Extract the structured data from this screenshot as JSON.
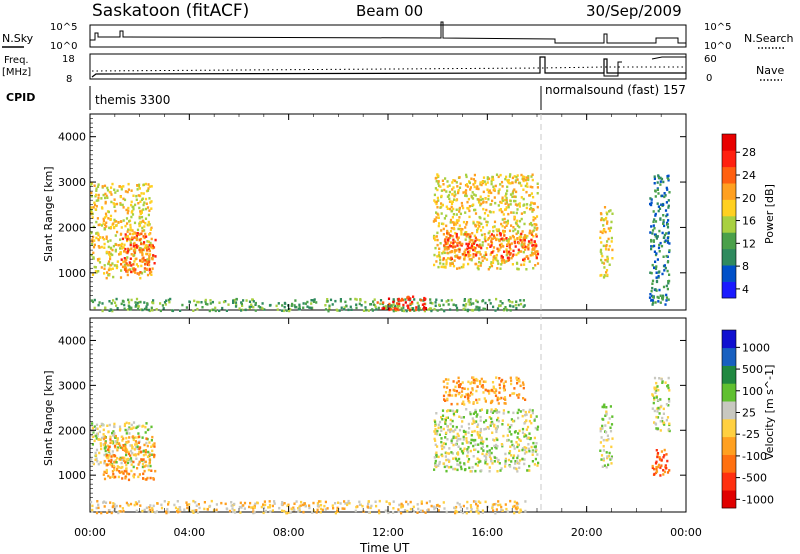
{
  "header": {
    "station": "Saskatoon (fitACF)",
    "beam": "Beam 00",
    "date": "30/Sep/2009"
  },
  "top_panels": {
    "left_label_top": "N.Sky",
    "left_label_freq_1": "Freq.",
    "left_label_freq_2": "[MHz]",
    "left_label_cpid": "CPID",
    "right_label_search": "N.Search",
    "right_label_nave": "Nave",
    "sky_ticks": [
      "10^5",
      "10^0"
    ],
    "freq_ticks": [
      "18",
      "8"
    ],
    "nave_ticks": [
      "60",
      "0"
    ],
    "cpid_programs": [
      "themis 3300",
      "normalsound (fast) 157"
    ]
  },
  "x_axis": {
    "label": "Time UT",
    "ticks": [
      "00:00",
      "04:00",
      "08:00",
      "12:00",
      "16:00",
      "20:00",
      "00:00"
    ]
  },
  "chart_data": [
    {
      "type": "heatmap",
      "title": "Power",
      "ylabel": "Slant Range [km]",
      "xlabel": "Time UT",
      "ylim": [
        180,
        4500
      ],
      "xlim_hours": [
        0,
        24
      ],
      "y_ticks": [
        1000,
        2000,
        3000,
        4000
      ],
      "colorbar": {
        "label": "Power [dB]",
        "ticks": [
          "28",
          "24",
          "20",
          "16",
          "12",
          "8",
          "4"
        ],
        "colors": [
          "#1a1aff",
          "#0050c8",
          "#2f8a5e",
          "#4aa04a",
          "#a8d040",
          "#ffd020",
          "#ffa020",
          "#ff6010",
          "#ff2010",
          "#e80000"
        ]
      },
      "approx_echo_regions": [
        {
          "t_start": 0.0,
          "t_end": 2.5,
          "range_min": 900,
          "range_max": 3000,
          "power_db": 18
        },
        {
          "t_start": 1.2,
          "t_end": 2.6,
          "range_min": 1000,
          "range_max": 1900,
          "power_db": 22
        },
        {
          "t_start": 0.0,
          "t_end": 17.5,
          "range_min": 180,
          "range_max": 450,
          "power_db": 10
        },
        {
          "t_start": 11.5,
          "t_end": 13.5,
          "range_min": 200,
          "range_max": 500,
          "power_db": 26
        },
        {
          "t_start": 13.8,
          "t_end": 18.0,
          "range_min": 1100,
          "range_max": 3200,
          "power_db": 16
        },
        {
          "t_start": 14.2,
          "t_end": 18.0,
          "range_min": 1300,
          "range_max": 1900,
          "power_db": 22
        },
        {
          "t_start": 20.5,
          "t_end": 21.0,
          "range_min": 900,
          "range_max": 2500,
          "power_db": 18
        },
        {
          "t_start": 22.5,
          "t_end": 23.3,
          "range_min": 300,
          "range_max": 3200,
          "power_db": 8
        }
      ]
    },
    {
      "type": "heatmap",
      "title": "Velocity",
      "ylabel": "Slant Range [km]",
      "xlabel": "Time UT",
      "ylim": [
        180,
        4500
      ],
      "xlim_hours": [
        0,
        24
      ],
      "y_ticks": [
        1000,
        2000,
        3000,
        4000
      ],
      "colorbar": {
        "label": "Velocity [m s^-1]",
        "ticks": [
          "1000",
          "500",
          "100",
          "25",
          "-25",
          "-100",
          "-500",
          "-1000"
        ],
        "colors": [
          "#e00000",
          "#ff3010",
          "#ff7010",
          "#ffa020",
          "#ffd040",
          "#c8c8c0",
          "#60c030",
          "#208840",
          "#1860c0",
          "#1010d0"
        ]
      },
      "approx_echo_regions": [
        {
          "t_start": 0.0,
          "t_end": 2.5,
          "range_min": 1200,
          "range_max": 2200,
          "velocity": 0
        },
        {
          "t_start": 0.5,
          "t_end": 2.6,
          "range_min": 900,
          "range_max": 1900,
          "velocity": -150
        },
        {
          "t_start": 0.0,
          "t_end": 17.5,
          "range_min": 180,
          "range_max": 450,
          "velocity": -40
        },
        {
          "t_start": 13.8,
          "t_end": 18.0,
          "range_min": 1100,
          "range_max": 2500,
          "velocity": 0
        },
        {
          "t_start": 14.2,
          "t_end": 17.5,
          "range_min": 2600,
          "range_max": 3200,
          "velocity": -200
        },
        {
          "t_start": 20.5,
          "t_end": 21.0,
          "range_min": 1200,
          "range_max": 2600,
          "velocity": 0
        },
        {
          "t_start": 22.6,
          "t_end": 23.3,
          "range_min": 1000,
          "range_max": 1600,
          "velocity": -300
        },
        {
          "t_start": 22.6,
          "t_end": 23.3,
          "range_min": 2000,
          "range_max": 3200,
          "velocity": 0
        }
      ]
    }
  ]
}
